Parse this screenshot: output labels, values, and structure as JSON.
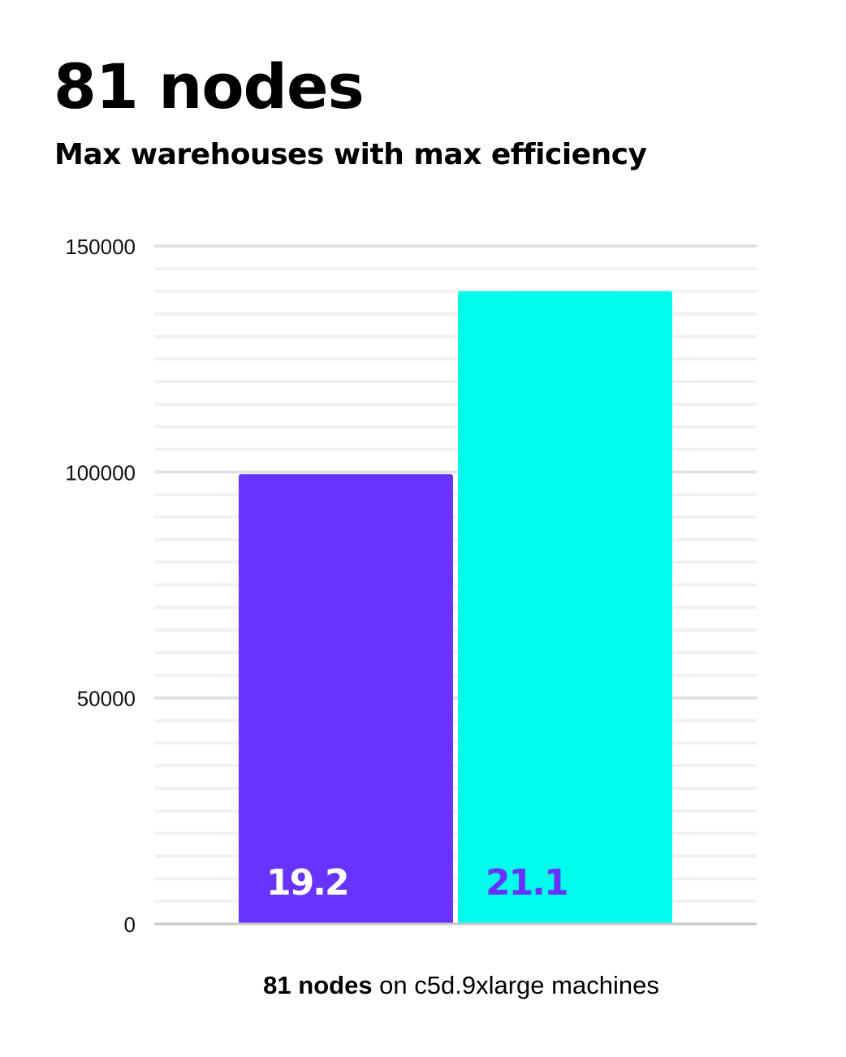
{
  "title": "81 nodes",
  "subtitle": "Max warehouses with max efficiency",
  "chart_data": {
    "type": "bar",
    "title": "81 nodes",
    "subtitle": "Max warehouses with max efficiency",
    "categories": [
      "",
      ""
    ],
    "values": [
      99500,
      140000
    ],
    "data_labels": [
      "19.2",
      "21.1"
    ],
    "colors": [
      "#6933ff",
      "#00fdeb"
    ],
    "label_colors": [
      "#ffffff",
      "#6933ff"
    ],
    "ylim": [
      0,
      150000
    ],
    "yticks": [
      0,
      50000,
      100000,
      150000
    ],
    "minor_tick_step": 5000,
    "grid": true,
    "xlabel_bold": "81 nodes",
    "xlabel_rest": " on c5d.9xlarge machines",
    "ylabel": ""
  }
}
